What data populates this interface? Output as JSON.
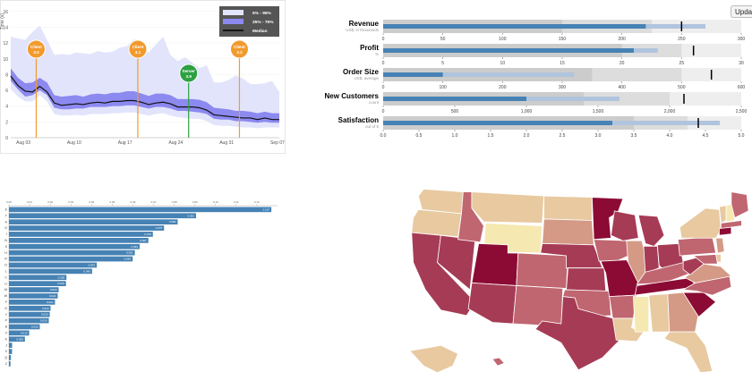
{
  "chart_data": [
    {
      "type": "area",
      "ylabel": "Time (s)",
      "ylim": [
        0,
        17
      ],
      "y_ticks": [
        0,
        2,
        4,
        6,
        8,
        10,
        12,
        14,
        16
      ],
      "x_ticks": [
        "Aug 03",
        "Aug 10",
        "Aug 17",
        "Aug 24",
        "Aug 31",
        "Sep 07"
      ],
      "x_range_days": [
        0,
        37
      ],
      "legend": {
        "placement": "top-right",
        "items": [
          "5% - 95%",
          "25% - 75%",
          "Median"
        ]
      },
      "colors": {
        "outer": "#e2e4fb",
        "inner": "#8c89f0",
        "median": "#111111",
        "release": "#f29a2e",
        "server": "#2ea043"
      },
      "series": {
        "day": [
          0,
          1,
          2,
          3,
          4,
          5,
          6,
          7,
          8,
          9,
          10,
          11,
          12,
          13,
          14,
          15,
          16,
          17,
          18,
          19,
          20,
          21,
          22,
          23,
          24,
          25,
          26,
          27,
          28,
          29,
          30,
          31,
          32,
          33,
          34,
          35,
          36,
          37
        ],
        "p5": [
          6.2,
          5.2,
          4.6,
          4.6,
          5.4,
          4.6,
          3.0,
          2.8,
          2.8,
          2.9,
          2.8,
          3.0,
          3.0,
          3.0,
          3.1,
          3.1,
          3.2,
          3.2,
          3.0,
          2.8,
          3.0,
          3.1,
          2.8,
          2.6,
          2.5,
          2.4,
          2.4,
          2.1,
          1.6,
          1.5,
          1.5,
          1.4,
          1.3,
          1.3,
          1.2,
          1.3,
          1.3,
          1.3
        ],
        "p25": [
          7.2,
          6.1,
          5.2,
          5.4,
          6.0,
          5.4,
          3.8,
          3.6,
          3.6,
          3.7,
          3.7,
          3.9,
          3.9,
          3.9,
          4.0,
          4.0,
          4.1,
          4.1,
          3.9,
          3.7,
          3.9,
          3.9,
          3.7,
          3.4,
          3.4,
          3.3,
          3.2,
          3.0,
          2.4,
          2.3,
          2.3,
          2.1,
          2.1,
          2.0,
          1.9,
          2.0,
          1.9,
          1.9
        ],
        "median": [
          7.8,
          6.6,
          5.9,
          5.8,
          6.5,
          5.8,
          4.4,
          4.1,
          4.2,
          4.3,
          4.2,
          4.4,
          4.5,
          4.4,
          4.6,
          4.6,
          4.7,
          4.7,
          4.5,
          4.2,
          4.4,
          4.5,
          4.3,
          3.9,
          3.9,
          3.9,
          3.8,
          3.5,
          2.9,
          2.8,
          2.7,
          2.6,
          2.5,
          2.5,
          2.3,
          2.5,
          2.3,
          2.3
        ],
        "p75": [
          8.8,
          7.6,
          6.9,
          7.0,
          7.6,
          7.0,
          5.4,
          5.2,
          5.3,
          5.4,
          5.2,
          5.5,
          5.6,
          5.5,
          5.7,
          5.7,
          5.9,
          5.9,
          5.6,
          5.3,
          5.6,
          5.6,
          5.4,
          4.9,
          4.9,
          4.9,
          4.8,
          4.5,
          3.8,
          3.7,
          3.6,
          3.4,
          3.4,
          3.3,
          3.1,
          3.3,
          3.1,
          3.1
        ],
        "p95": [
          12.8,
          12.6,
          12.4,
          13.4,
          14.2,
          12.4,
          10.5,
          10.6,
          10.5,
          10.8,
          10.7,
          10.6,
          11.0,
          10.8,
          10.9,
          11.4,
          11.6,
          12.5,
          11.7,
          10.8,
          11.8,
          12.8,
          10.5,
          9.7,
          10.2,
          9.5,
          8.8,
          9.2,
          7.0,
          7.0,
          7.3,
          7.9,
          7.5,
          6.8,
          6.8,
          6.9,
          7.2,
          5.8
        ]
      },
      "annotations": [
        {
          "label": "Client",
          "version": "3.0",
          "day": 4,
          "kind": "release"
        },
        {
          "label": "Client",
          "version": "3.1",
          "day": 18,
          "kind": "release"
        },
        {
          "label": "Server",
          "version": "3.9",
          "day": 25,
          "kind": "server"
        },
        {
          "label": "Client",
          "version": "3.2",
          "day": 32,
          "kind": "release"
        }
      ]
    },
    {
      "type": "bar",
      "subtype": "bullet",
      "update_label": "Update",
      "colors": {
        "range": [
          "#eeeeee",
          "#dddddd",
          "#cccccc"
        ],
        "measure": [
          "#b0c4de",
          "#4682b4"
        ],
        "marker": "#000000"
      },
      "bullets": [
        {
          "title": "Revenue",
          "subtitle": "US$, in thousands",
          "ranges": [
            150,
            225,
            300
          ],
          "measures": [
            220,
            270
          ],
          "marker": 250,
          "ticks": [
            "0",
            "50",
            "100",
            "150",
            "200",
            "250",
            "300"
          ],
          "max": 300
        },
        {
          "title": "Profit",
          "subtitle": "%",
          "ranges": [
            20,
            25,
            30
          ],
          "measures": [
            21,
            23
          ],
          "marker": 26,
          "ticks": [
            "0",
            "5",
            "10",
            "15",
            "20",
            "25",
            "30"
          ],
          "max": 30
        },
        {
          "title": "Order Size",
          "subtitle": "US$, average",
          "ranges": [
            350,
            500,
            600
          ],
          "measures": [
            100,
            320
          ],
          "marker": 550,
          "ticks": [
            "0",
            "100",
            "200",
            "300",
            "400",
            "500",
            "600"
          ],
          "max": 600
        },
        {
          "title": "New Customers",
          "subtitle": "count",
          "ranges": [
            1400,
            2000,
            2500
          ],
          "measures": [
            1000,
            1650
          ],
          "marker": 2100,
          "ticks": [
            "0",
            "500",
            "1,000",
            "1,500",
            "2,000",
            "2,500"
          ],
          "max": 2500
        },
        {
          "title": "Satisfaction",
          "subtitle": "out of 5",
          "ranges": [
            3.5,
            4.25,
            5
          ],
          "measures": [
            3.2,
            4.7
          ],
          "marker": 4.4,
          "ticks": [
            "0.0",
            "0.5",
            "1.0",
            "1.5",
            "2.0",
            "2.5",
            "3.0",
            "3.5",
            "4.0",
            "4.5",
            "5.0"
          ],
          "max": 5
        }
      ]
    },
    {
      "type": "bar",
      "orientation": "horizontal",
      "xlim": [
        0,
        0.13
      ],
      "x_ticks": [
        "0.00",
        "0.01",
        "0.02",
        "0.03",
        "0.04",
        "0.05",
        "0.06",
        "0.07",
        "0.08",
        "0.09",
        "0.10",
        "0.11",
        "0.12"
      ],
      "color": "#4682b4",
      "categories": [
        "E",
        "T",
        "A",
        "O",
        "I",
        "N",
        "S",
        "H",
        "R",
        "D",
        "L",
        "C",
        "U",
        "M",
        "W",
        "F",
        "G",
        "Y",
        "P",
        "B",
        "V",
        "K",
        "J",
        "X",
        "Q",
        "Z"
      ],
      "values": [
        0.12702,
        0.09056,
        0.08167,
        0.07507,
        0.06966,
        0.06749,
        0.06327,
        0.06094,
        0.05987,
        0.04253,
        0.04025,
        0.02782,
        0.02758,
        0.02406,
        0.0236,
        0.02228,
        0.02015,
        0.01974,
        0.01929,
        0.01492,
        0.00978,
        0.00772,
        0.00153,
        0.0015,
        0.00095,
        0.00074
      ],
      "data_labels": [
        "0.127",
        "0.091",
        "0.082",
        "0.075",
        "0.070",
        "0.067",
        "0.063",
        "0.061",
        "0.060",
        "0.043",
        "0.040",
        "0.028",
        "0.028",
        "0.024",
        "0.024",
        "0.022",
        "0.020",
        "0.020",
        "0.019",
        "0.015",
        "0.010",
        "0.008",
        "",
        "",
        "",
        ""
      ]
    },
    {
      "type": "heatmap",
      "subtype": "choropleth",
      "colors": {
        "scale": [
          "#f6e8b1",
          "#e8c9a0",
          "#d49a86",
          "#c06670",
          "#a63b55",
          "#8b0b34"
        ]
      },
      "regions": [
        {
          "name": "WA",
          "v": 1
        },
        {
          "name": "OR",
          "v": 1
        },
        {
          "name": "CA",
          "v": 4
        },
        {
          "name": "NV",
          "v": 4
        },
        {
          "name": "ID",
          "v": 3
        },
        {
          "name": "MT",
          "v": 1
        },
        {
          "name": "WY",
          "v": 0
        },
        {
          "name": "UT",
          "v": 5
        },
        {
          "name": "AZ",
          "v": 4
        },
        {
          "name": "CO",
          "v": 3
        },
        {
          "name": "NM",
          "v": 3
        },
        {
          "name": "ND",
          "v": 1
        },
        {
          "name": "SD",
          "v": 2
        },
        {
          "name": "NE",
          "v": 4
        },
        {
          "name": "KS",
          "v": 4
        },
        {
          "name": "OK",
          "v": 3
        },
        {
          "name": "TX",
          "v": 4
        },
        {
          "name": "MN",
          "v": 5
        },
        {
          "name": "IA",
          "v": 3
        },
        {
          "name": "MO",
          "v": 5
        },
        {
          "name": "AR",
          "v": 3
        },
        {
          "name": "LA",
          "v": 1
        },
        {
          "name": "WI",
          "v": 4
        },
        {
          "name": "IL",
          "v": 2
        },
        {
          "name": "MI",
          "v": 4
        },
        {
          "name": "IN",
          "v": 4
        },
        {
          "name": "OH",
          "v": 4
        },
        {
          "name": "KY",
          "v": 3
        },
        {
          "name": "TN",
          "v": 5
        },
        {
          "name": "MS",
          "v": 0
        },
        {
          "name": "AL",
          "v": 1
        },
        {
          "name": "GA",
          "v": 2
        },
        {
          "name": "FL",
          "v": 1
        },
        {
          "name": "SC",
          "v": 5
        },
        {
          "name": "NC",
          "v": 3
        },
        {
          "name": "VA",
          "v": 2
        },
        {
          "name": "WV",
          "v": 4
        },
        {
          "name": "PA",
          "v": 3
        },
        {
          "name": "NY",
          "v": 1
        },
        {
          "name": "VT",
          "v": 1
        },
        {
          "name": "NH",
          "v": 0
        },
        {
          "name": "ME",
          "v": 3
        },
        {
          "name": "MA",
          "v": 3
        },
        {
          "name": "CT",
          "v": 5
        },
        {
          "name": "NJ",
          "v": 2
        },
        {
          "name": "DE",
          "v": 1
        },
        {
          "name": "MD",
          "v": 3
        },
        {
          "name": "AK",
          "v": 1
        },
        {
          "name": "HI",
          "v": 3
        }
      ]
    }
  ]
}
